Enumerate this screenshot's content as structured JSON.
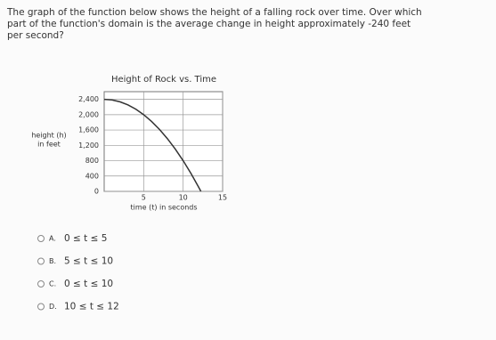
{
  "question": [
    "The graph of the function below shows the height of a falling rock over time. Over which",
    "part of the function's domain is the average change in height approximately -240 feet",
    "per second?"
  ],
  "chart_data": {
    "type": "line",
    "title": "Height of Rock vs. Time",
    "x_label": "time (t) in seconds",
    "y_label": [
      "height (h)",
      "in feet"
    ],
    "x": [
      0,
      1,
      2,
      3,
      4,
      5,
      6,
      7,
      8,
      9,
      10,
      11,
      12,
      12.25
    ],
    "series": [
      {
        "name": "height",
        "color": "#333333",
        "values": [
          2400,
          2384,
          2336,
          2256,
          2144,
          2000,
          1824,
          1616,
          1376,
          1104,
          800,
          464,
          96,
          0
        ]
      }
    ],
    "xlim": [
      0,
      15
    ],
    "xticks": [
      5,
      10,
      15
    ],
    "ylim": [
      0,
      2600
    ],
    "yticks": [
      0,
      400,
      800,
      {
        "value": 1200,
        "label": "1,200"
      },
      {
        "value": 1600,
        "label": "1,600"
      },
      {
        "value": 2000,
        "label": "2,000"
      },
      {
        "value": 2400,
        "label": "2,400"
      }
    ],
    "grid": true
  },
  "options": [
    {
      "letter": "A.",
      "text": "0 ≤ t ≤ 5"
    },
    {
      "letter": "B.",
      "text": "5 ≤ t ≤ 10"
    },
    {
      "letter": "C.",
      "text": "0 ≤ t ≤ 10"
    },
    {
      "letter": "D.",
      "text": "10 ≤ t ≤ 12"
    }
  ]
}
